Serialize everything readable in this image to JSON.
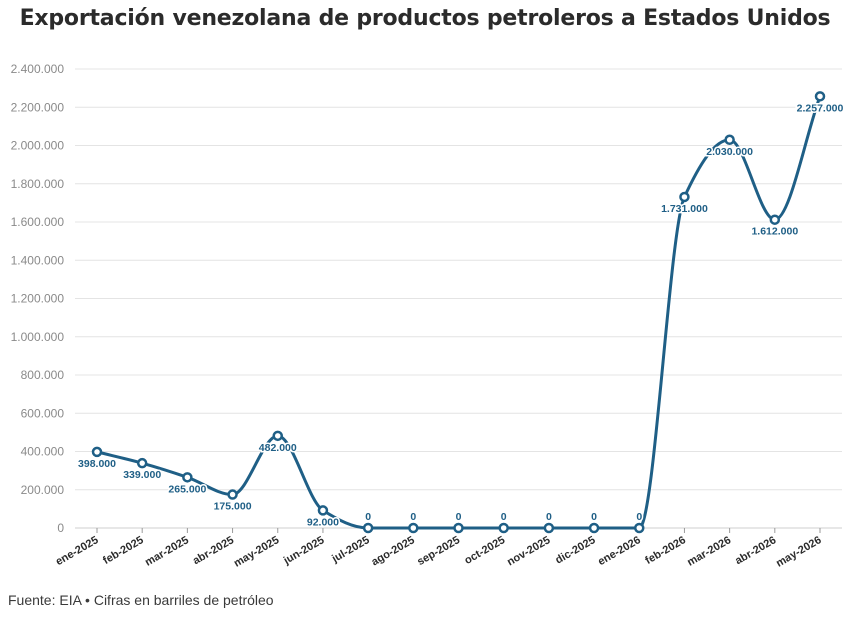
{
  "chart_data": {
    "type": "line",
    "title": "Exportación venezolana de productos petroleros a Estados Unidos",
    "xlabel": "",
    "ylabel": "",
    "categories": [
      "ene-2025",
      "feb-2025",
      "mar-2025",
      "abr-2025",
      "may-2025",
      "jun-2025",
      "jul-2025",
      "ago-2025",
      "sep-2025",
      "oct-2025",
      "nov-2025",
      "dic-2025",
      "ene-2026",
      "feb-2026",
      "mar-2026",
      "abr-2026",
      "may-2026"
    ],
    "values": [
      398000,
      339000,
      265000,
      175000,
      482000,
      92000,
      0,
      0,
      0,
      0,
      0,
      0,
      0,
      1731000,
      2030000,
      1612000,
      2257000
    ],
    "value_labels": [
      "398.000",
      "339.000",
      "265.000",
      "175.000",
      "482.000",
      "92.000",
      "0",
      "0",
      "0",
      "0",
      "0",
      "0",
      "0",
      "1.731.000",
      "2.030.000",
      "1.612.000",
      "2.257.000"
    ],
    "ylim": [
      0,
      2400000
    ],
    "yticks": [
      0,
      200000,
      400000,
      600000,
      800000,
      1000000,
      1200000,
      1400000,
      1600000,
      1800000,
      2000000,
      2200000,
      2400000
    ],
    "ytick_labels": [
      "0",
      "200.000",
      "400.000",
      "600.000",
      "800.000",
      "1.000.000",
      "1.200.000",
      "1.400.000",
      "1.600.000",
      "1.800.000",
      "2.000.000",
      "2.200.000",
      "2.400.000"
    ],
    "grid": true,
    "legend": "none",
    "line_color": "#1f5f86",
    "label_color": "#1f5f86",
    "grid_color": "#e4e4e4"
  },
  "footer": "Fuente: EIA • Cifras en barriles de petróleo"
}
